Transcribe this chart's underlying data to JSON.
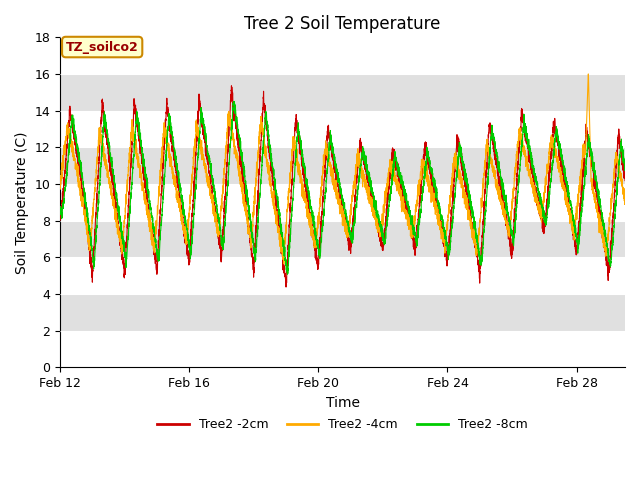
{
  "title": "Tree 2 Soil Temperature",
  "xlabel": "Time",
  "ylabel": "Soil Temperature (C)",
  "ylim": [
    0,
    18
  ],
  "yticks": [
    0,
    2,
    4,
    6,
    8,
    10,
    12,
    14,
    16,
    18
  ],
  "x_tick_labels": [
    "Feb 12",
    "Feb 16",
    "Feb 20",
    "Feb 24",
    "Feb 28"
  ],
  "x_tick_positions": [
    0,
    4,
    8,
    12,
    16
  ],
  "n_days": 17.5,
  "legend_labels": [
    "Tree2 -2cm",
    "Tree2 -4cm",
    "Tree2 -8cm"
  ],
  "line_colors": [
    "#cc0000",
    "#ffaa00",
    "#00cc00"
  ],
  "annotation_text": "TZ_soilco2",
  "annotation_color": "#990000",
  "annotation_bg": "#ffffcc",
  "annotation_border": "#cc8800",
  "bg_band_color": "#e0e0e0",
  "bg_bands": [
    [
      2.0,
      4.0
    ],
    [
      6.0,
      8.0
    ],
    [
      10.0,
      12.0
    ],
    [
      14.0,
      16.0
    ]
  ],
  "title_fontsize": 12,
  "axis_label_fontsize": 10,
  "tick_fontsize": 9,
  "legend_fontsize": 9,
  "figsize": [
    6.4,
    4.8
  ],
  "dpi": 100
}
